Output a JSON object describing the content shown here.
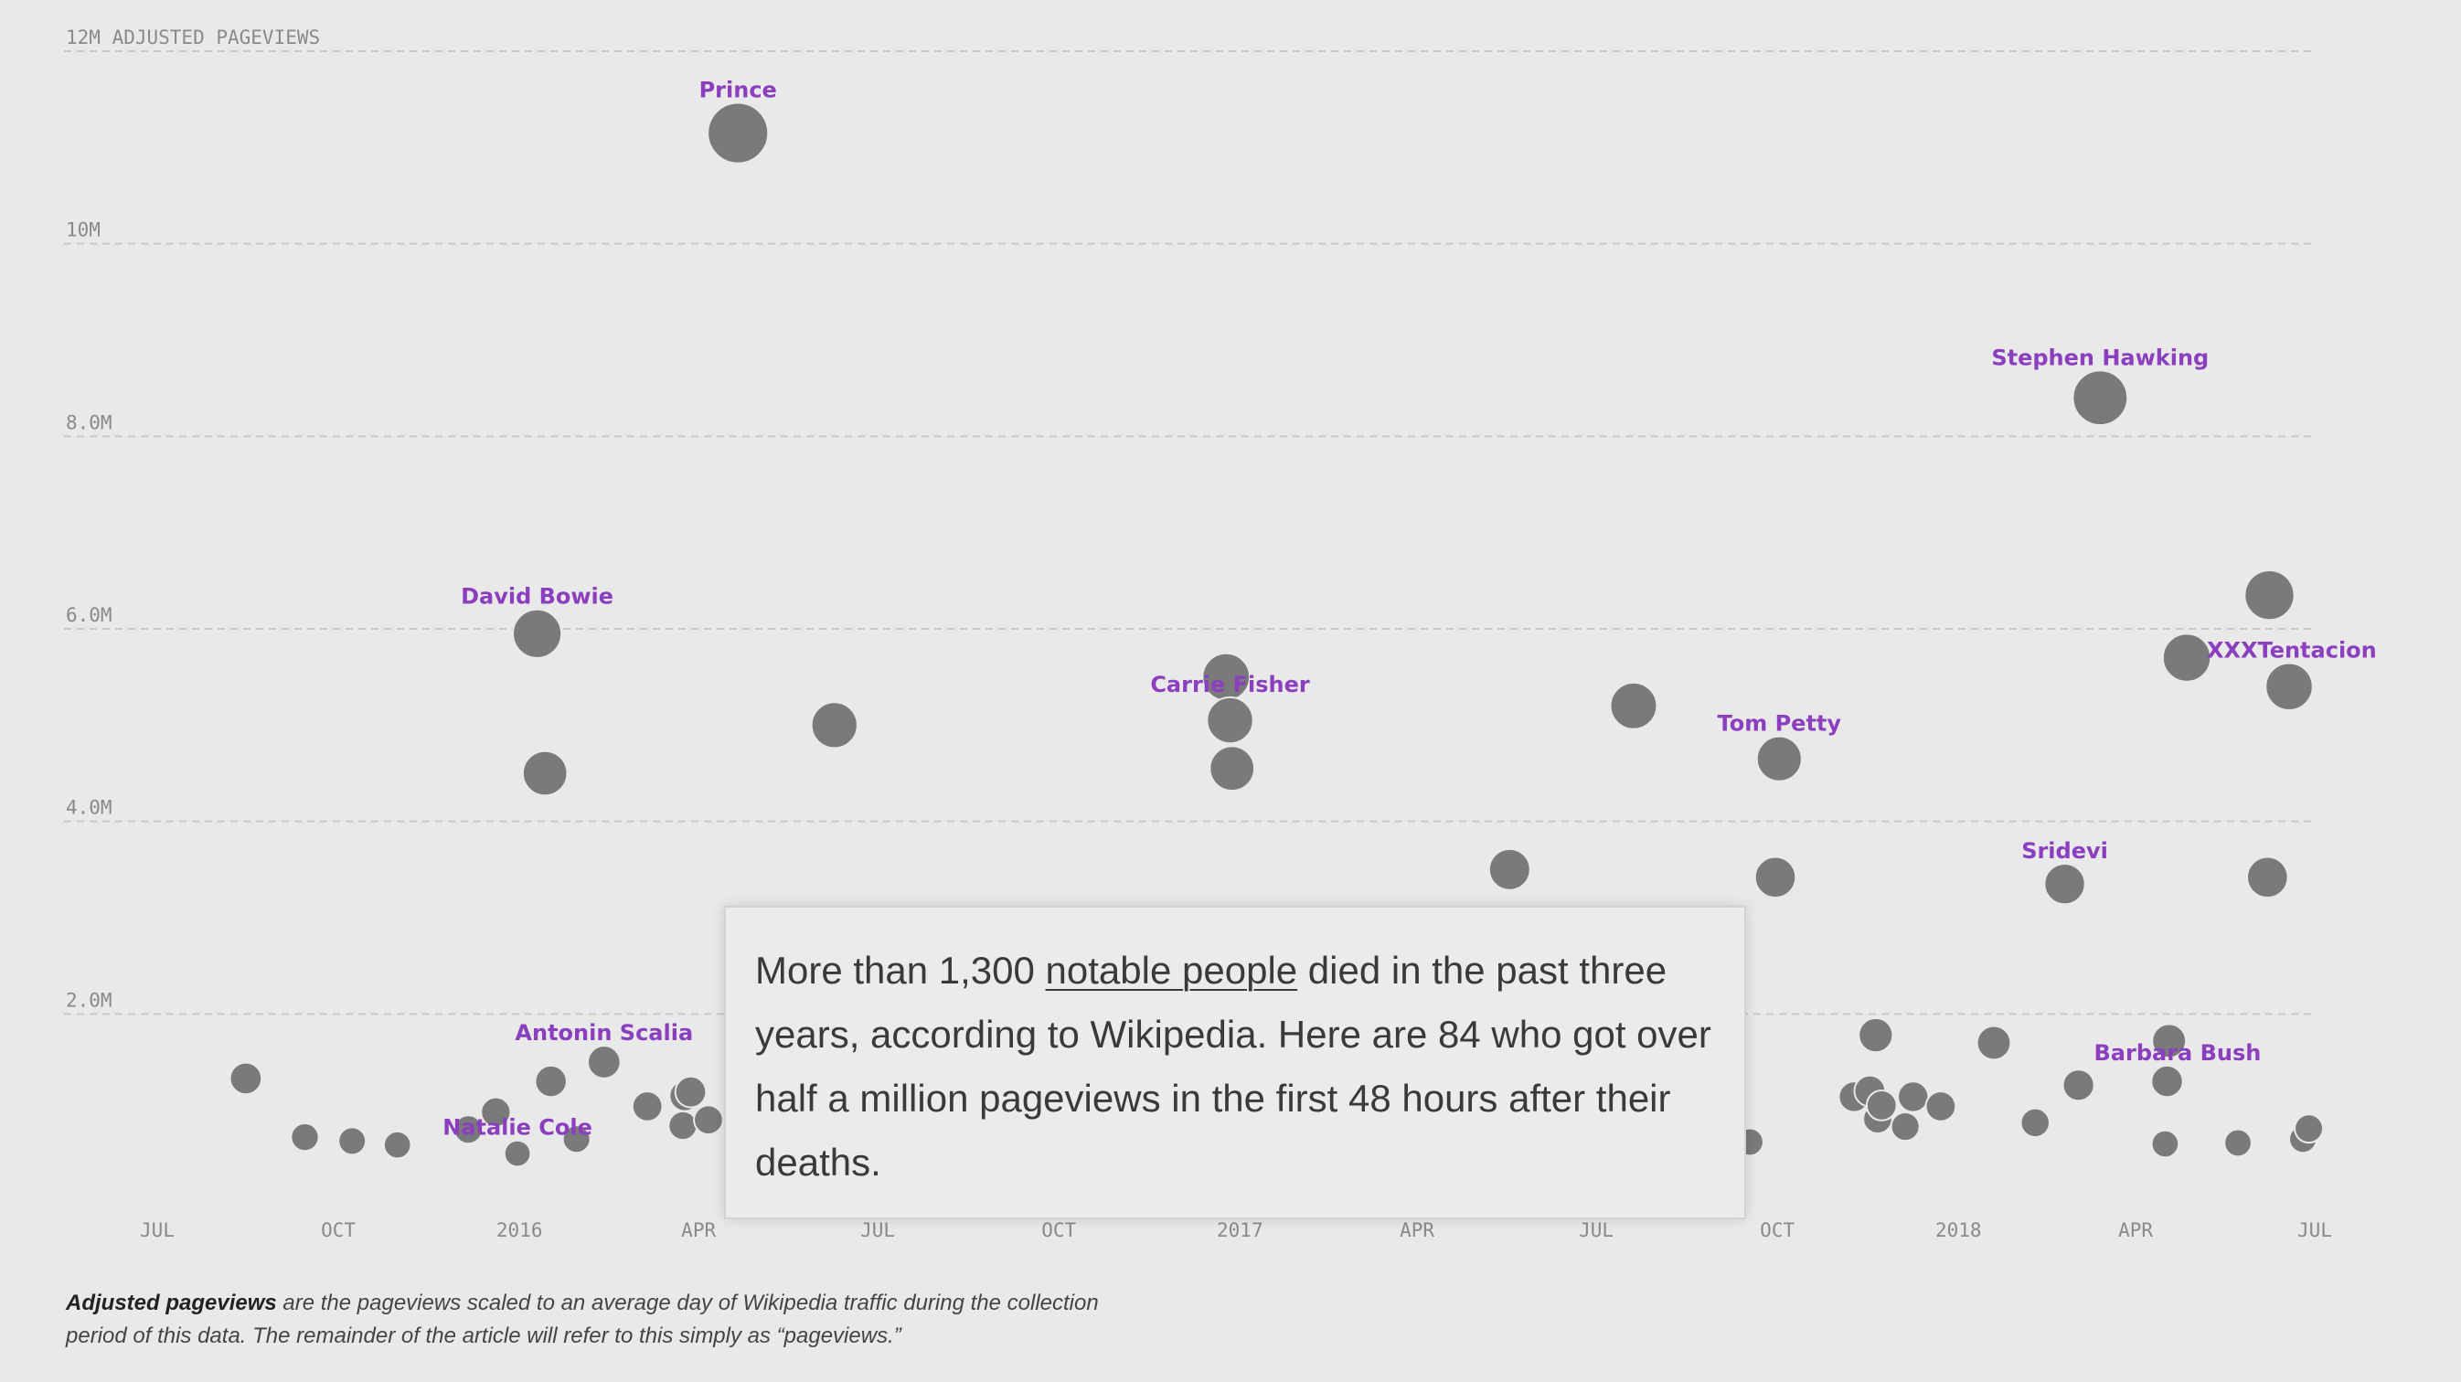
{
  "chart_data": {
    "type": "scatter",
    "xlabel": "",
    "ylabel": "12M ADJUSTED PAGEVIEWS",
    "ylim": [
      0,
      12000000
    ],
    "xlim": [
      "2015-07-01",
      "2018-07-01"
    ],
    "y_ticks": [
      {
        "value": 12000000,
        "label": "12M ADJUSTED PAGEVIEWS"
      },
      {
        "value": 10000000,
        "label": "10M"
      },
      {
        "value": 8000000,
        "label": "8.0M"
      },
      {
        "value": 6000000,
        "label": "6.0M"
      },
      {
        "value": 4000000,
        "label": "4.0M"
      },
      {
        "value": 2000000,
        "label": "2.0M"
      }
    ],
    "x_ticks": [
      {
        "value": "2015-07-01",
        "label": "JUL"
      },
      {
        "value": "2015-10-01",
        "label": "OCT"
      },
      {
        "value": "2016-01-01",
        "label": "2016"
      },
      {
        "value": "2016-04-01",
        "label": "APR"
      },
      {
        "value": "2016-07-01",
        "label": "JUL"
      },
      {
        "value": "2016-10-01",
        "label": "OCT"
      },
      {
        "value": "2017-01-01",
        "label": "2017"
      },
      {
        "value": "2017-04-01",
        "label": "APR"
      },
      {
        "value": "2017-07-01",
        "label": "JUL"
      },
      {
        "value": "2017-10-01",
        "label": "OCT"
      },
      {
        "value": "2018-01-01",
        "label": "2018"
      },
      {
        "value": "2018-04-01",
        "label": "APR"
      },
      {
        "value": "2018-07-01",
        "label": "JUL"
      }
    ],
    "grid": true,
    "labeled_points": [
      {
        "name": "Prince",
        "x": "2016-04-21",
        "y": 11150000
      },
      {
        "name": "Stephen Hawking",
        "x": "2018-03-14",
        "y": 8400000
      },
      {
        "name": "David Bowie",
        "x": "2016-01-10",
        "y": 5950000
      },
      {
        "name": "Carrie Fisher",
        "x": "2016-12-27",
        "y": 5050000
      },
      {
        "name": "Tom Petty",
        "x": "2017-10-02",
        "y": 4650000
      },
      {
        "name": "XXXTentacion",
        "x": "2018-06-18",
        "y": 5400000
      },
      {
        "name": "Sridevi",
        "x": "2018-02-24",
        "y": 3350000
      },
      {
        "name": "Antonin Scalia",
        "x": "2016-02-13",
        "y": 1500000
      },
      {
        "name": "Natalie Cole",
        "x": "2015-12-31",
        "y": 550000
      },
      {
        "name": "Barbara Bush",
        "x": "2018-04-17",
        "y": 1300000
      }
    ],
    "points": [
      {
        "x": "2016-06-09",
        "y": 5000000
      },
      {
        "x": "2016-12-25",
        "y": 5500000
      },
      {
        "x": "2016-12-28",
        "y": 4550000
      },
      {
        "x": "2016-01-14",
        "y": 4500000
      },
      {
        "x": "2017-05-18",
        "y": 3500000
      },
      {
        "x": "2017-07-20",
        "y": 5200000
      },
      {
        "x": "2017-09-30",
        "y": 3420000
      },
      {
        "x": "2018-06-08",
        "y": 6350000
      },
      {
        "x": "2018-04-27",
        "y": 5700000
      },
      {
        "x": "2018-06-07",
        "y": 3420000
      },
      {
        "x": "2015-08-15",
        "y": 1330000
      },
      {
        "x": "2015-09-14",
        "y": 720000
      },
      {
        "x": "2015-10-08",
        "y": 680000
      },
      {
        "x": "2015-10-31",
        "y": 640000
      },
      {
        "x": "2015-12-06",
        "y": 800000
      },
      {
        "x": "2015-12-20",
        "y": 980000
      },
      {
        "x": "2016-01-17",
        "y": 1300000
      },
      {
        "x": "2016-01-30",
        "y": 700000
      },
      {
        "x": "2016-03-06",
        "y": 1040000
      },
      {
        "x": "2016-03-25",
        "y": 1150000
      },
      {
        "x": "2016-03-28",
        "y": 1190000
      },
      {
        "x": "2016-03-24",
        "y": 840000
      },
      {
        "x": "2016-04-06",
        "y": 900000
      },
      {
        "x": "2017-09-17",
        "y": 670000
      },
      {
        "x": "2017-11-09",
        "y": 1140000
      },
      {
        "x": "2017-11-17",
        "y": 1200000
      },
      {
        "x": "2017-11-20",
        "y": 1780000
      },
      {
        "x": "2017-11-21",
        "y": 910000
      },
      {
        "x": "2017-11-23",
        "y": 1050000
      },
      {
        "x": "2017-12-05",
        "y": 830000
      },
      {
        "x": "2017-12-09",
        "y": 1140000
      },
      {
        "x": "2017-12-23",
        "y": 1040000
      },
      {
        "x": "2018-01-19",
        "y": 1700000
      },
      {
        "x": "2018-02-09",
        "y": 870000
      },
      {
        "x": "2018-03-03",
        "y": 1260000
      },
      {
        "x": "2018-04-16",
        "y": 650000
      },
      {
        "x": "2018-05-23",
        "y": 660000
      },
      {
        "x": "2018-06-25",
        "y": 700000
      },
      {
        "x": "2018-06-28",
        "y": 810000
      },
      {
        "x": "2018-04-18",
        "y": 1720000
      }
    ]
  },
  "intro": {
    "before_link": "More than 1,300 ",
    "link": "notable people",
    "after_link": " died in the past three years, according to Wikipedia. Here are 84 who got over half a million pageviews in the first 48 hours after their deaths."
  },
  "footnote": {
    "bold": "Adjusted pageviews",
    "rest": " are the pageviews scaled to an average day of Wikipedia traffic during the collection period of this data. The remainder of the article will refer to this simply as “pageviews.”"
  }
}
